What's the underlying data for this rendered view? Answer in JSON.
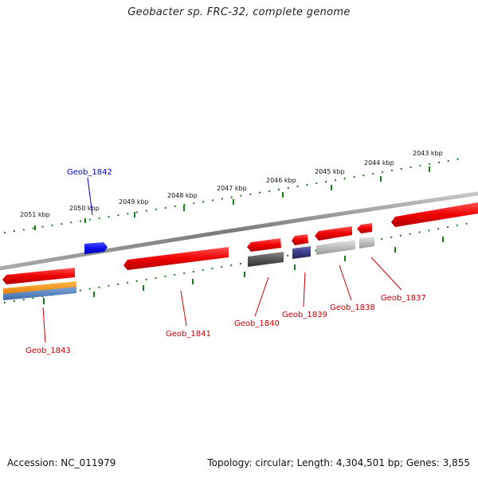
{
  "title": "Geobacter sp. FRC-32, complete genome",
  "accession": "Accession: NC_011979",
  "summary": "Topology: circular; Length: 4,304,501 bp; Genes: 3,855",
  "scale_labels": [
    "2051 kbp",
    "2050 kbp",
    "2049 kbp",
    "2048 kbp",
    "2047 kbp",
    "2046 kbp",
    "2045 kbp",
    "2044 kbp",
    "2043 kbp"
  ],
  "genes": [
    {
      "name": "Geob_1842",
      "color": "#0000cc"
    },
    {
      "name": "Geob_1843",
      "color": "#cc0000"
    },
    {
      "name": "Geob_1841",
      "color": "#cc0000"
    },
    {
      "name": "Geob_1840",
      "color": "#cc0000"
    },
    {
      "name": "Geob_1839",
      "color": "#cc0000"
    },
    {
      "name": "Geob_1838",
      "color": "#cc0000"
    },
    {
      "name": "Geob_1837",
      "color": "#cc0000"
    }
  ],
  "colors": {
    "backbone": "#888888",
    "tick": "#1a7a1a",
    "cds": "#ee1111",
    "highlight": "#1515ee",
    "blast_dark": "#555555",
    "blast_navy": "#3a3a8a",
    "blast_light": "#bbbbbb",
    "rrna_orange": "#f08c00",
    "rrna_blue": "#4a78b8"
  }
}
